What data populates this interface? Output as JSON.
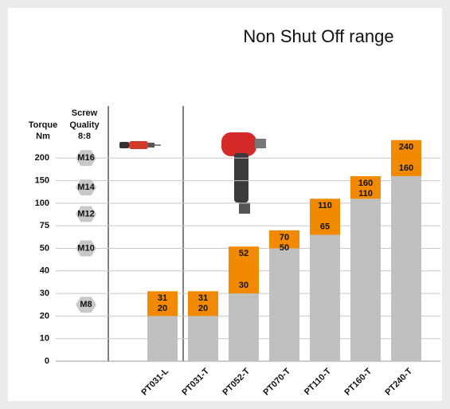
{
  "chart_data": {
    "type": "range_bar",
    "title": "Non Shut Off range",
    "y_label": [
      "Torque",
      "Nm"
    ],
    "screw_label": [
      "Screw",
      "Quality",
      "8:8"
    ],
    "screw_sizes": [
      {
        "label": "M16",
        "value": 200
      },
      {
        "label": "M14",
        "value": 135
      },
      {
        "label": "M12",
        "value": 88
      },
      {
        "label": "M10",
        "value": 50
      },
      {
        "label": "M8",
        "value": 25
      }
    ],
    "categories": [
      "PT031-L",
      "PT031-T",
      "PT052-T",
      "PT070-T",
      "PT110-T",
      "PT160-T",
      "PT240-T"
    ],
    "low": [
      20,
      20,
      30,
      50,
      65,
      110,
      160
    ],
    "high": [
      31,
      31,
      52,
      70,
      110,
      160,
      240
    ],
    "low_color": "#c0c0c0",
    "high_color": "#f18a00",
    "yticks": [
      0,
      10,
      20,
      30,
      40,
      50,
      75,
      100,
      150,
      200
    ],
    "grid": true
  }
}
